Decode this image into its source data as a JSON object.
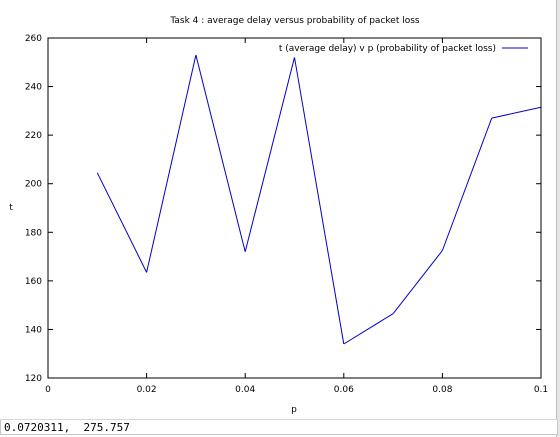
{
  "chart_data": {
    "type": "line",
    "title": "Task 4 : average delay versus probability of packet loss",
    "xlabel": "p",
    "ylabel": "t",
    "xlim": [
      0,
      0.1
    ],
    "ylim": [
      120,
      260
    ],
    "x_ticks": [
      0,
      0.02,
      0.04,
      0.06,
      0.08,
      0.1
    ],
    "x_tick_labels": [
      "0",
      "0.02",
      "0.04",
      "0.06",
      "0.08",
      "0.1"
    ],
    "y_ticks": [
      120,
      140,
      160,
      180,
      200,
      220,
      240,
      260
    ],
    "y_tick_labels": [
      "120",
      "140",
      "160",
      "180",
      "200",
      "220",
      "240",
      "260"
    ],
    "grid": false,
    "legend_position": "top-right",
    "series": [
      {
        "name": "t (average delay) v p (probability of packet loss)",
        "color": "#0000cc",
        "x": [
          0.01,
          0.02,
          0.03,
          0.04,
          0.05,
          0.06,
          0.07,
          0.08,
          0.09,
          0.1
        ],
        "y": [
          204.5,
          163.5,
          253,
          172,
          252,
          134,
          146.5,
          172.5,
          227,
          231.5
        ]
      }
    ]
  },
  "status_bar": {
    "coordinates": "0.0720311,  275.757"
  }
}
